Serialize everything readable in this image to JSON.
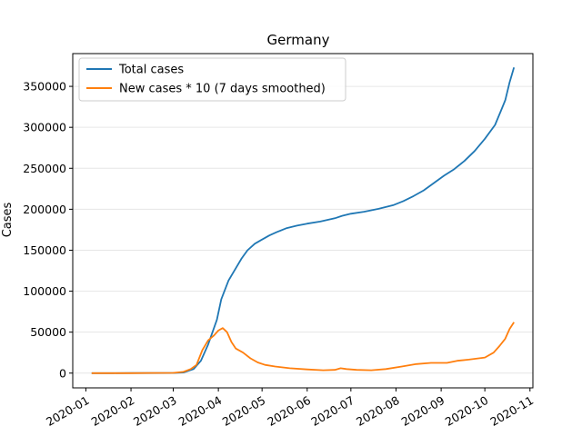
{
  "chart_data": {
    "type": "line",
    "title": "Germany",
    "xlabel": "",
    "ylabel": "Cases",
    "x_ticks": [
      "2020-01",
      "2020-02",
      "2020-03",
      "2020-04",
      "2020-05",
      "2020-06",
      "2020-07",
      "2020-08",
      "2020-09",
      "2020-10",
      "2020-11"
    ],
    "y_ticks": [
      0,
      50000,
      100000,
      150000,
      200000,
      250000,
      300000,
      350000
    ],
    "xlim": [
      "2019-12-23",
      "2020-11-03"
    ],
    "ylim": [
      -18000,
      390000
    ],
    "grid": "y",
    "legend_position": "top-left",
    "series": [
      {
        "name": "Total cases",
        "color": "#1f77b4",
        "points": [
          [
            "2020-01-05",
            0
          ],
          [
            "2020-01-20",
            0
          ],
          [
            "2020-02-01",
            50
          ],
          [
            "2020-02-15",
            100
          ],
          [
            "2020-03-01",
            150
          ],
          [
            "2020-03-08",
            700
          ],
          [
            "2020-03-15",
            5000
          ],
          [
            "2020-03-20",
            15000
          ],
          [
            "2020-03-25",
            35000
          ],
          [
            "2020-03-31",
            65000
          ],
          [
            "2020-04-03",
            90000
          ],
          [
            "2020-04-08",
            113000
          ],
          [
            "2020-04-13",
            128000
          ],
          [
            "2020-04-17",
            140000
          ],
          [
            "2020-04-21",
            150000
          ],
          [
            "2020-04-26",
            158000
          ],
          [
            "2020-05-01",
            163000
          ],
          [
            "2020-05-06",
            168000
          ],
          [
            "2020-05-11",
            172000
          ],
          [
            "2020-05-18",
            177000
          ],
          [
            "2020-05-25",
            180000
          ],
          [
            "2020-06-01",
            182500
          ],
          [
            "2020-06-10",
            185000
          ],
          [
            "2020-06-20",
            189000
          ],
          [
            "2020-06-25",
            192000
          ],
          [
            "2020-07-01",
            194500
          ],
          [
            "2020-07-10",
            197000
          ],
          [
            "2020-07-20",
            200500
          ],
          [
            "2020-07-30",
            205000
          ],
          [
            "2020-08-06",
            210000
          ],
          [
            "2020-08-13",
            216000
          ],
          [
            "2020-08-20",
            223000
          ],
          [
            "2020-08-27",
            232000
          ],
          [
            "2020-09-03",
            241000
          ],
          [
            "2020-09-10",
            249000
          ],
          [
            "2020-09-17",
            259000
          ],
          [
            "2020-09-24",
            271000
          ],
          [
            "2020-10-01",
            286000
          ],
          [
            "2020-10-08",
            303000
          ],
          [
            "2020-10-12",
            320000
          ],
          [
            "2020-10-15",
            333000
          ],
          [
            "2020-10-18",
            355000
          ],
          [
            "2020-10-21",
            373000
          ]
        ]
      },
      {
        "name": "New cases * 10 (7 days smoothed)",
        "color": "#ff7f0e",
        "points": [
          [
            "2020-01-05",
            0
          ],
          [
            "2020-01-20",
            0
          ],
          [
            "2020-02-01",
            0
          ],
          [
            "2020-02-15",
            200
          ],
          [
            "2020-03-01",
            300
          ],
          [
            "2020-03-08",
            1500
          ],
          [
            "2020-03-13",
            5000
          ],
          [
            "2020-03-17",
            10000
          ],
          [
            "2020-03-21",
            28000
          ],
          [
            "2020-03-25",
            40000
          ],
          [
            "2020-03-29",
            46000
          ],
          [
            "2020-04-01",
            52000
          ],
          [
            "2020-04-04",
            55000
          ],
          [
            "2020-04-07",
            50000
          ],
          [
            "2020-04-10",
            38000
          ],
          [
            "2020-04-13",
            30000
          ],
          [
            "2020-04-18",
            25000
          ],
          [
            "2020-04-23",
            18000
          ],
          [
            "2020-04-28",
            13000
          ],
          [
            "2020-05-03",
            10000
          ],
          [
            "2020-05-10",
            8000
          ],
          [
            "2020-05-20",
            6000
          ],
          [
            "2020-06-01",
            4500
          ],
          [
            "2020-06-12",
            3500
          ],
          [
            "2020-06-20",
            4000
          ],
          [
            "2020-06-24",
            6000
          ],
          [
            "2020-06-28",
            5000
          ],
          [
            "2020-07-05",
            4000
          ],
          [
            "2020-07-15",
            3500
          ],
          [
            "2020-07-25",
            5000
          ],
          [
            "2020-08-05",
            8000
          ],
          [
            "2020-08-15",
            11000
          ],
          [
            "2020-08-25",
            12500
          ],
          [
            "2020-09-05",
            12500
          ],
          [
            "2020-09-12",
            15000
          ],
          [
            "2020-09-20",
            16500
          ],
          [
            "2020-10-01",
            19000
          ],
          [
            "2020-10-07",
            25000
          ],
          [
            "2020-10-11",
            33000
          ],
          [
            "2020-10-15",
            42000
          ],
          [
            "2020-10-18",
            54000
          ],
          [
            "2020-10-21",
            62000
          ]
        ]
      }
    ]
  }
}
